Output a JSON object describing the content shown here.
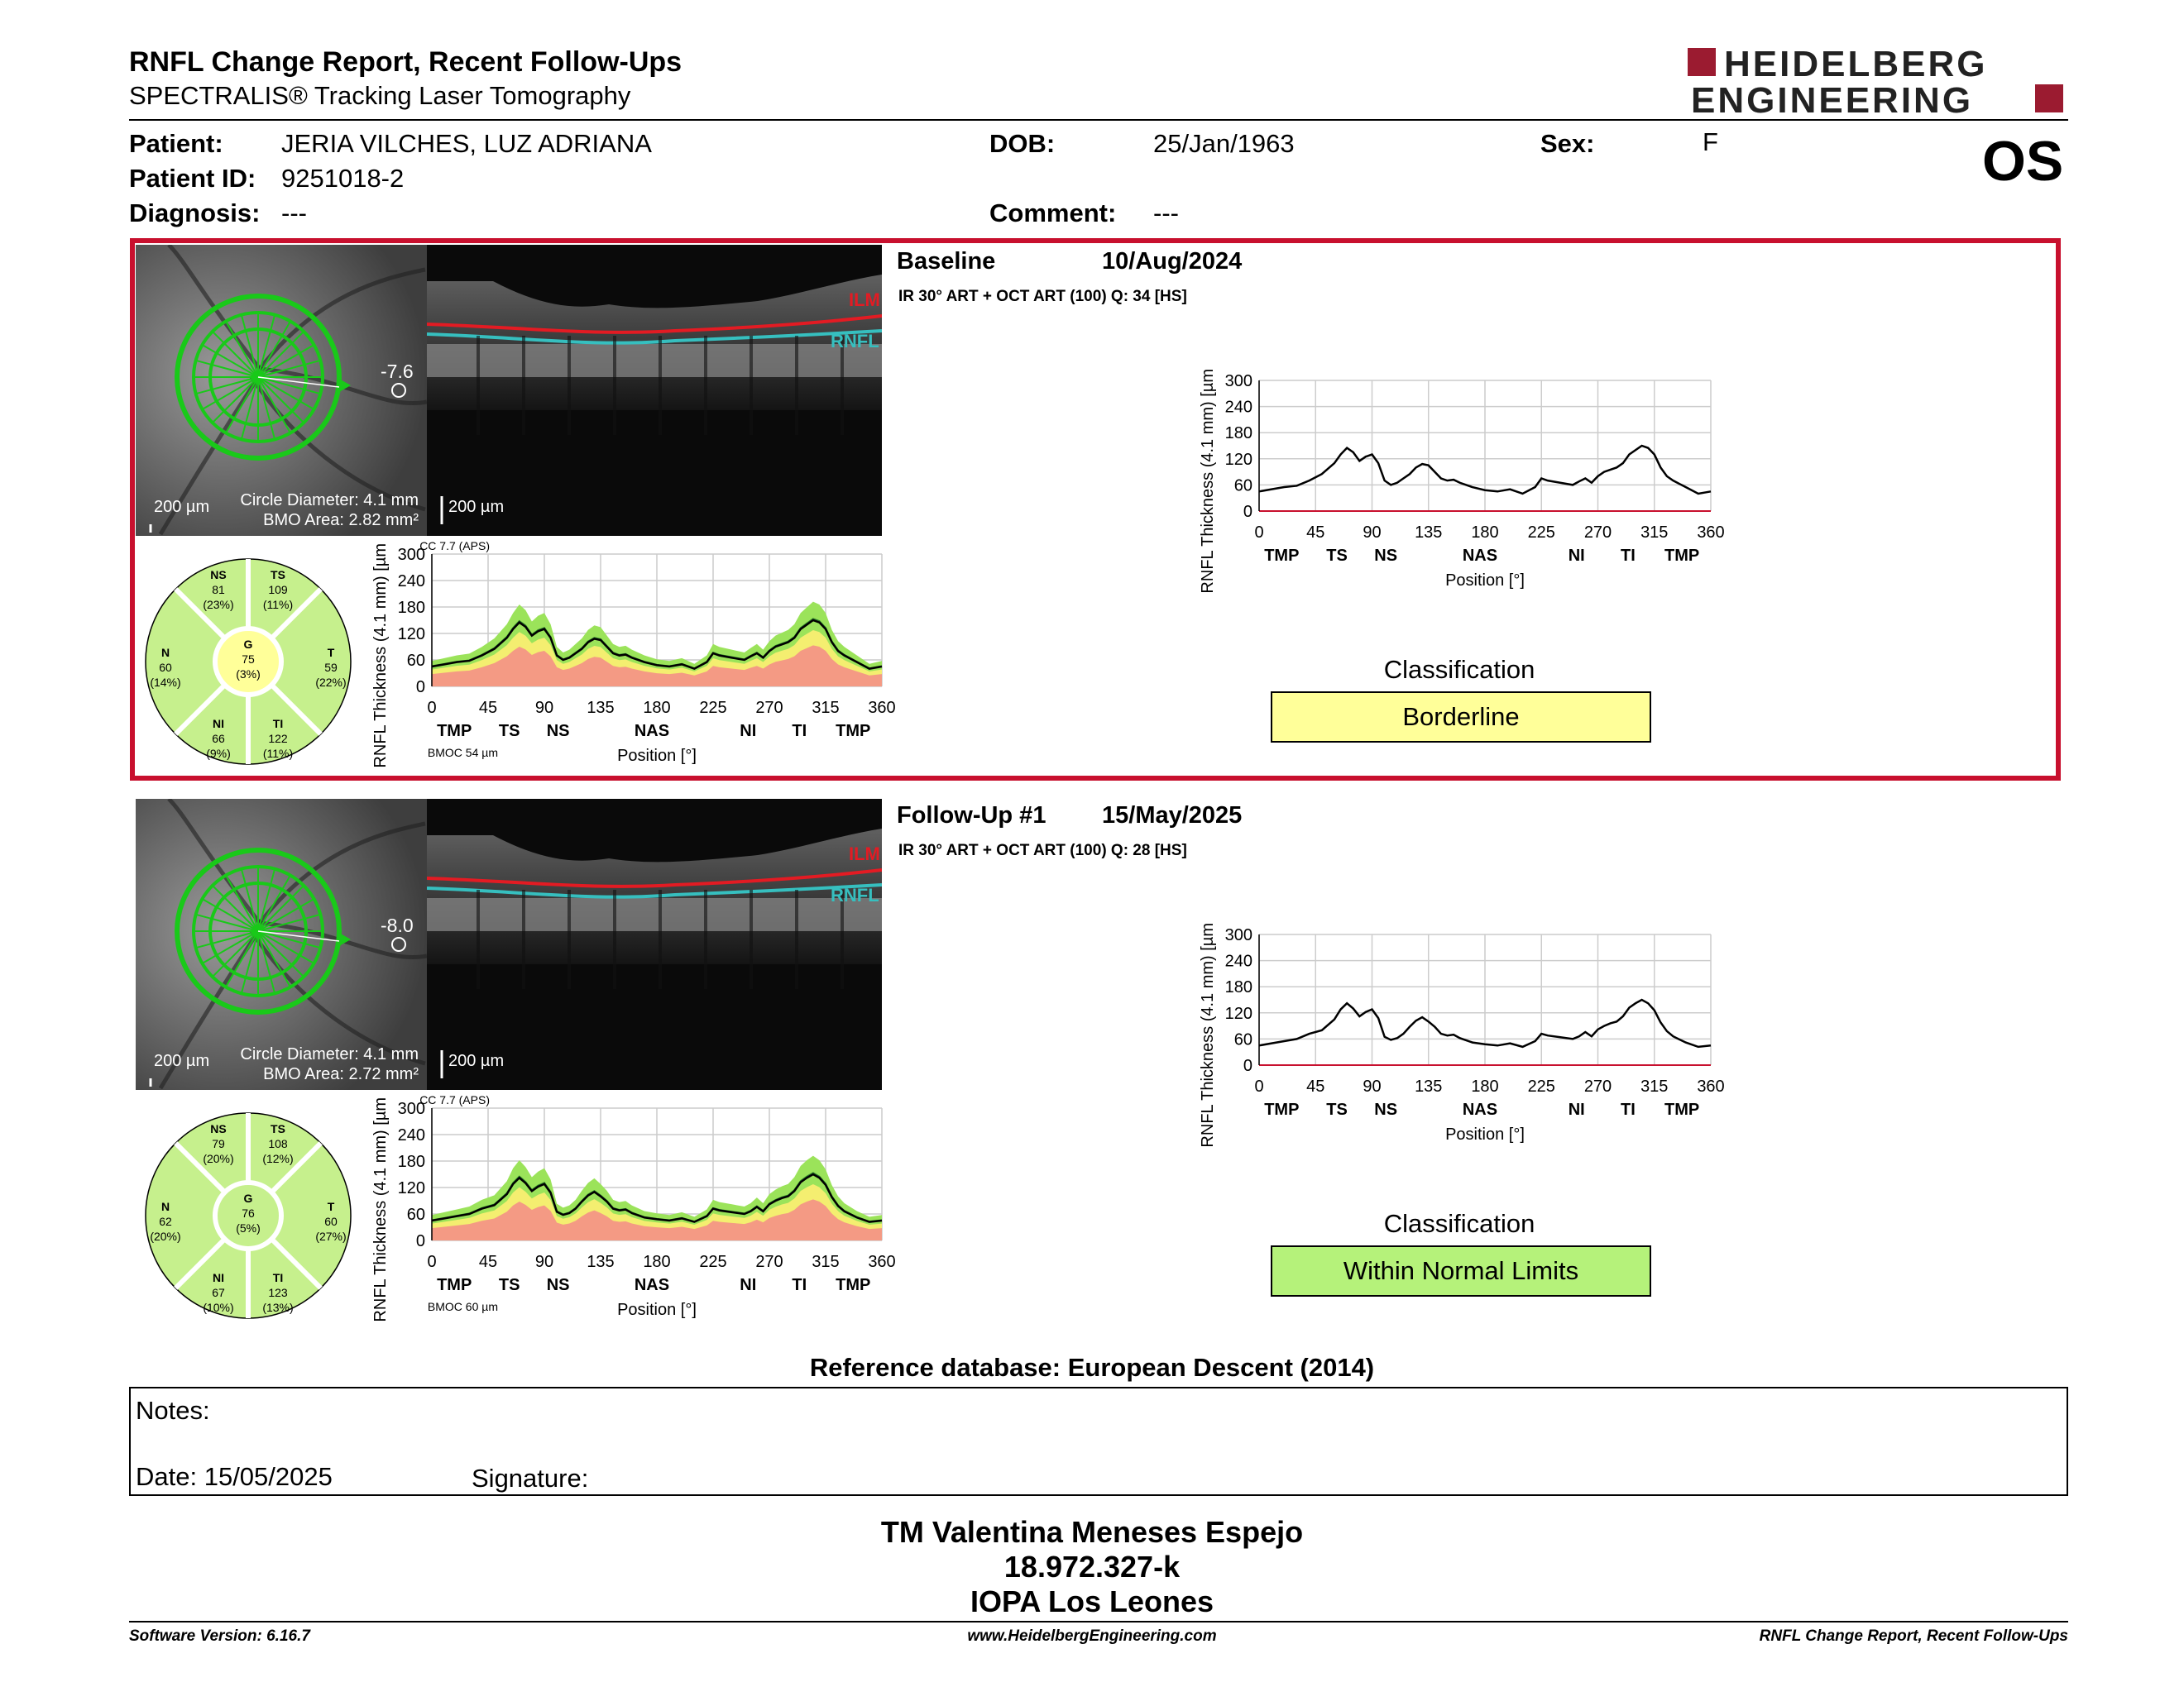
{
  "header": {
    "title": "RNFL Change Report, Recent Follow-Ups",
    "subtitle": "SPECTRALIS® Tracking Laser Tomography",
    "logo_line1": "HEIDELBERG",
    "logo_line2": "ENGINEERING",
    "eye": "OS"
  },
  "patient": {
    "patient_label": "Patient:",
    "patient_value": "JERIA VILCHES, LUZ ADRIANA",
    "id_label": "Patient ID:",
    "id_value": "9251018-2",
    "diagnosis_label": "Diagnosis:",
    "diagnosis_value": "---",
    "dob_label": "DOB:",
    "dob_value": "25/Jan/1963",
    "comment_label": "Comment:",
    "comment_value": "---",
    "sex_label": "Sex:",
    "sex_value": "F"
  },
  "scans": [
    {
      "name": "Baseline",
      "date": "10/Aug/2024",
      "protocol": "IR 30° ART + OCT ART (100) Q: 34 [HS]",
      "angle": "-7.6",
      "scale_fundus": "200 µm",
      "circle_diameter": "Circle Diameter: 4.1 mm",
      "bmo_area": "BMO Area: 2.82 mm²",
      "scale_oct": "200 µm",
      "ilm": "ILM",
      "rnfl": "RNFL",
      "cc": "CC 7.7 (APS)",
      "bmoc": "BMOC 54 µm",
      "sectors": {
        "NS": {
          "label": "NS",
          "value": "81",
          "pct": "(23%)"
        },
        "TS": {
          "label": "TS",
          "value": "109",
          "pct": "(11%)"
        },
        "N": {
          "label": "N",
          "value": "60",
          "pct": "(14%)"
        },
        "G": {
          "label": "G",
          "value": "75",
          "pct": "(3%)"
        },
        "T": {
          "label": "T",
          "value": "59",
          "pct": "(22%)"
        },
        "NI": {
          "label": "NI",
          "value": "66",
          "pct": "(9%)"
        },
        "TI": {
          "label": "TI",
          "value": "122",
          "pct": "(11%)"
        }
      },
      "classification_label": "Classification",
      "classification": "Borderline",
      "classification_color": "#ffff99"
    },
    {
      "name": "Follow-Up #1",
      "date": "15/May/2025",
      "protocol": "IR 30° ART + OCT ART (100) Q: 28 [HS]",
      "angle": "-8.0",
      "scale_fundus": "200 µm",
      "circle_diameter": "Circle Diameter: 4.1 mm",
      "bmo_area": "BMO Area: 2.72 mm²",
      "scale_oct": "200 µm",
      "ilm": "ILM",
      "rnfl": "RNFL",
      "cc": "CC 7.7 (APS)",
      "bmoc": "BMOC 60 µm",
      "sectors": {
        "NS": {
          "label": "NS",
          "value": "79",
          "pct": "(20%)"
        },
        "TS": {
          "label": "TS",
          "value": "108",
          "pct": "(12%)"
        },
        "N": {
          "label": "N",
          "value": "62",
          "pct": "(20%)"
        },
        "G": {
          "label": "G",
          "value": "76",
          "pct": "(5%)"
        },
        "T": {
          "label": "T",
          "value": "60",
          "pct": "(27%)"
        },
        "NI": {
          "label": "NI",
          "value": "67",
          "pct": "(10%)"
        },
        "TI": {
          "label": "TI",
          "value": "123",
          "pct": "(13%)"
        }
      },
      "classification_label": "Classification",
      "classification": "Within Normal Limits",
      "classification_color": "#b5f27a"
    }
  ],
  "chart_data": [
    {
      "type": "line",
      "ylabel": "RNFL Thickness (4.1 mm) [µm]",
      "xlabel": "Position [°]",
      "ylim": [
        0,
        300
      ],
      "xlim": [
        0,
        360
      ],
      "yticks": [
        0,
        60,
        120,
        180,
        240,
        300
      ],
      "xticks": [
        0,
        45,
        90,
        135,
        180,
        225,
        270,
        315,
        360
      ],
      "sector_labels": [
        "TMP",
        "TS",
        "NS",
        "NAS",
        "NI",
        "TI",
        "TMP"
      ],
      "sector_positions": [
        18,
        62,
        101,
        176,
        253,
        294,
        337
      ],
      "series": [
        {
          "x": [
            0,
            10,
            20,
            30,
            40,
            50,
            60,
            65,
            70,
            75,
            80,
            85,
            90,
            95,
            100,
            105,
            110,
            115,
            120,
            125,
            130,
            135,
            140,
            145,
            150,
            155,
            160,
            170,
            180,
            190,
            200,
            210,
            220,
            225,
            230,
            240,
            250,
            255,
            260,
            265,
            270,
            275,
            280,
            285,
            290,
            295,
            300,
            305,
            310,
            315,
            320,
            325,
            330,
            340,
            350,
            360
          ],
          "values": [
            45,
            50,
            55,
            58,
            70,
            85,
            110,
            130,
            145,
            135,
            115,
            125,
            130,
            110,
            70,
            60,
            65,
            75,
            85,
            100,
            108,
            105,
            90,
            75,
            70,
            72,
            65,
            55,
            48,
            45,
            50,
            40,
            55,
            75,
            70,
            65,
            60,
            68,
            75,
            65,
            80,
            90,
            95,
            100,
            110,
            130,
            140,
            150,
            145,
            130,
            100,
            80,
            70,
            55,
            40,
            45
          ]
        }
      ]
    },
    {
      "type": "line",
      "ylabel": "RNFL Thickness (4.1 mm) [µm]",
      "xlabel": "Position [°]",
      "ylim": [
        0,
        300
      ],
      "xlim": [
        0,
        360
      ],
      "yticks": [
        0,
        60,
        120,
        180,
        240,
        300
      ],
      "xticks": [
        0,
        45,
        90,
        135,
        180,
        225,
        270,
        315,
        360
      ],
      "sector_labels": [
        "TMP",
        "TS",
        "NS",
        "NAS",
        "NI",
        "TI",
        "TMP"
      ],
      "sector_positions": [
        18,
        62,
        101,
        176,
        253,
        294,
        337
      ],
      "series": [
        {
          "x": [
            0,
            10,
            20,
            30,
            40,
            50,
            60,
            65,
            70,
            75,
            80,
            85,
            90,
            95,
            100,
            105,
            110,
            115,
            120,
            125,
            130,
            135,
            140,
            145,
            150,
            155,
            160,
            170,
            180,
            190,
            200,
            210,
            220,
            225,
            230,
            240,
            250,
            255,
            260,
            265,
            270,
            275,
            280,
            285,
            290,
            295,
            300,
            305,
            310,
            315,
            320,
            325,
            330,
            340,
            350,
            360
          ],
          "values": [
            45,
            50,
            55,
            60,
            72,
            80,
            105,
            128,
            142,
            130,
            112,
            122,
            128,
            108,
            65,
            58,
            62,
            72,
            88,
            102,
            110,
            100,
            88,
            72,
            68,
            70,
            62,
            52,
            48,
            45,
            50,
            42,
            55,
            72,
            68,
            64,
            60,
            66,
            76,
            66,
            82,
            90,
            96,
            100,
            112,
            132,
            142,
            150,
            142,
            126,
            98,
            78,
            66,
            52,
            42,
            45
          ]
        }
      ]
    }
  ],
  "footer_section": {
    "reference": "Reference database: European Descent (2014)",
    "notes_label": "Notes:",
    "date_label": "Date: 15/05/2025",
    "signature_label": "Signature:",
    "sig_name": "TM Valentina Meneses Espejo",
    "sig_id": "18.972.327-k",
    "sig_org": "IOPA Los Leones",
    "software": "Software Version: 6.16.7",
    "website": "www.HeidelbergEngineering.com",
    "report_name": "RNFL Change Report, Recent Follow-Ups"
  },
  "colors": {
    "frame_red": "#c8102e",
    "band_green": "#9be35a",
    "band_yellow": "#f4ee70",
    "band_red": "#f49a84",
    "logo_red": "#9b1b30"
  }
}
